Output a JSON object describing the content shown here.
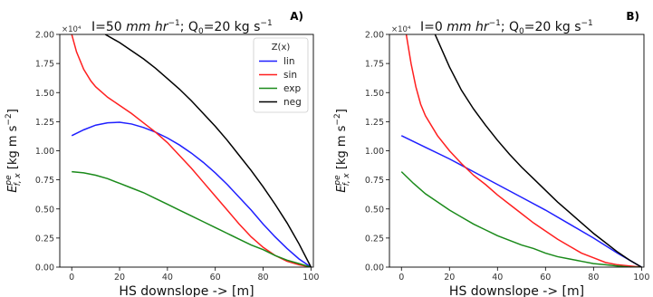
{
  "chart_data": [
    {
      "panel_label": "A)",
      "type": "line",
      "title": "I=50 mm hr⁻¹; Q₀=20 kg s⁻¹",
      "title_parts": {
        "pre": "I=50 ",
        "unit_ital": "mm hr",
        "unit_sup": "−1",
        "mid": "; Q",
        "mid_sub": "0",
        "post": "=20 kg s",
        "post_sup": "−1"
      },
      "xlabel": "HS downslope ->  [m]",
      "ylabel": {
        "base": "E",
        "sup": "pe",
        "sub": "f, x",
        "units": "[kg m s",
        "units_sup": "−2",
        "units_end": "]"
      },
      "y_multiplier": "×10⁴",
      "xlim": [
        -5,
        101
      ],
      "ylim": [
        0,
        2.0
      ],
      "xticks": [
        "0",
        "20",
        "40",
        "60",
        "80",
        "100"
      ],
      "yticks": [
        "0.00",
        "0.25",
        "0.50",
        "0.75",
        "1.00",
        "1.25",
        "1.50",
        "1.75",
        "2.00"
      ],
      "legend": {
        "title": "Z(x)",
        "position": "top-right"
      },
      "series": [
        {
          "name": "lin",
          "color": "#1f1fff",
          "x": [
            0,
            5,
            10,
            15,
            20,
            25,
            30,
            35,
            40,
            45,
            50,
            55,
            60,
            65,
            70,
            75,
            80,
            85,
            90,
            95,
            100
          ],
          "y": [
            1.13,
            1.18,
            1.22,
            1.24,
            1.245,
            1.23,
            1.2,
            1.16,
            1.11,
            1.05,
            0.98,
            0.9,
            0.81,
            0.71,
            0.6,
            0.49,
            0.37,
            0.26,
            0.16,
            0.07,
            0.0
          ]
        },
        {
          "name": "sin",
          "color": "#ff1f1f",
          "x": [
            0,
            2,
            5,
            8,
            10,
            15,
            20,
            25,
            30,
            35,
            40,
            45,
            50,
            55,
            60,
            65,
            70,
            75,
            80,
            85,
            90,
            95,
            100
          ],
          "y": [
            2.0,
            1.85,
            1.7,
            1.6,
            1.55,
            1.46,
            1.39,
            1.32,
            1.24,
            1.16,
            1.07,
            0.96,
            0.85,
            0.73,
            0.61,
            0.49,
            0.37,
            0.26,
            0.17,
            0.1,
            0.05,
            0.02,
            0.0
          ]
        },
        {
          "name": "exp",
          "color": "#1a8a1a",
          "x": [
            0,
            5,
            10,
            15,
            20,
            25,
            30,
            35,
            40,
            45,
            50,
            55,
            60,
            65,
            70,
            75,
            80,
            85,
            90,
            95,
            100
          ],
          "y": [
            0.82,
            0.81,
            0.79,
            0.76,
            0.72,
            0.68,
            0.64,
            0.59,
            0.54,
            0.49,
            0.44,
            0.39,
            0.34,
            0.29,
            0.24,
            0.19,
            0.15,
            0.1,
            0.06,
            0.03,
            0.0
          ]
        },
        {
          "name": "neg",
          "color": "#000000",
          "x": [
            14,
            20,
            25,
            30,
            35,
            40,
            45,
            50,
            55,
            60,
            65,
            70,
            75,
            80,
            85,
            90,
            95,
            100
          ],
          "y": [
            2.0,
            1.93,
            1.86,
            1.79,
            1.71,
            1.62,
            1.53,
            1.43,
            1.32,
            1.21,
            1.09,
            0.96,
            0.83,
            0.69,
            0.54,
            0.38,
            0.2,
            0.0
          ]
        }
      ]
    },
    {
      "panel_label": "B)",
      "type": "line",
      "title": "I=0 mm hr⁻¹; Q₀=20 kg s⁻¹",
      "title_parts": {
        "pre": "I=0 ",
        "unit_ital": "mm hr",
        "unit_sup": "−1",
        "mid": "; Q",
        "mid_sub": "0",
        "post": "=20 kg s",
        "post_sup": "−1"
      },
      "xlabel": "HS downslope ->  [m]",
      "ylabel": {
        "base": "E",
        "sup": "pe",
        "sub": "f, x",
        "units": "[kg m s",
        "units_sup": "−2",
        "units_end": "]"
      },
      "y_multiplier": "×10⁴",
      "xlim": [
        -5,
        101
      ],
      "ylim": [
        0,
        2.0
      ],
      "xticks": [
        "0",
        "20",
        "40",
        "60",
        "80",
        "100"
      ],
      "yticks": [
        "0.00",
        "0.25",
        "0.50",
        "0.75",
        "1.00",
        "1.25",
        "1.50",
        "1.75",
        "2.00"
      ],
      "series": [
        {
          "name": "lin",
          "color": "#1f1fff",
          "x": [
            0,
            10,
            20,
            30,
            40,
            50,
            60,
            70,
            80,
            90,
            100
          ],
          "y": [
            1.13,
            1.03,
            0.93,
            0.82,
            0.71,
            0.6,
            0.49,
            0.37,
            0.25,
            0.12,
            0.0
          ]
        },
        {
          "name": "sin",
          "color": "#ff1f1f",
          "x": [
            2,
            4,
            6,
            8,
            10,
            15,
            20,
            25,
            30,
            35,
            40,
            45,
            50,
            55,
            60,
            65,
            70,
            75,
            80,
            85,
            90,
            95,
            100
          ],
          "y": [
            2.0,
            1.75,
            1.55,
            1.4,
            1.3,
            1.13,
            1.0,
            0.89,
            0.79,
            0.71,
            0.62,
            0.54,
            0.46,
            0.38,
            0.31,
            0.24,
            0.18,
            0.12,
            0.08,
            0.04,
            0.02,
            0.01,
            0.0
          ]
        },
        {
          "name": "exp",
          "color": "#1a8a1a",
          "x": [
            0,
            5,
            10,
            15,
            20,
            25,
            30,
            35,
            40,
            45,
            50,
            55,
            60,
            65,
            70,
            75,
            80,
            85,
            90,
            95,
            100
          ],
          "y": [
            0.82,
            0.72,
            0.63,
            0.56,
            0.49,
            0.43,
            0.37,
            0.32,
            0.27,
            0.23,
            0.19,
            0.16,
            0.12,
            0.09,
            0.07,
            0.05,
            0.03,
            0.02,
            0.01,
            0.0,
            0.0
          ]
        },
        {
          "name": "neg",
          "color": "#000000",
          "x": [
            14,
            20,
            25,
            30,
            35,
            40,
            45,
            50,
            55,
            60,
            65,
            70,
            75,
            80,
            85,
            90,
            95,
            100
          ],
          "y": [
            2.0,
            1.72,
            1.52,
            1.36,
            1.22,
            1.09,
            0.97,
            0.86,
            0.76,
            0.66,
            0.56,
            0.47,
            0.38,
            0.29,
            0.21,
            0.13,
            0.06,
            0.0
          ]
        }
      ]
    }
  ]
}
